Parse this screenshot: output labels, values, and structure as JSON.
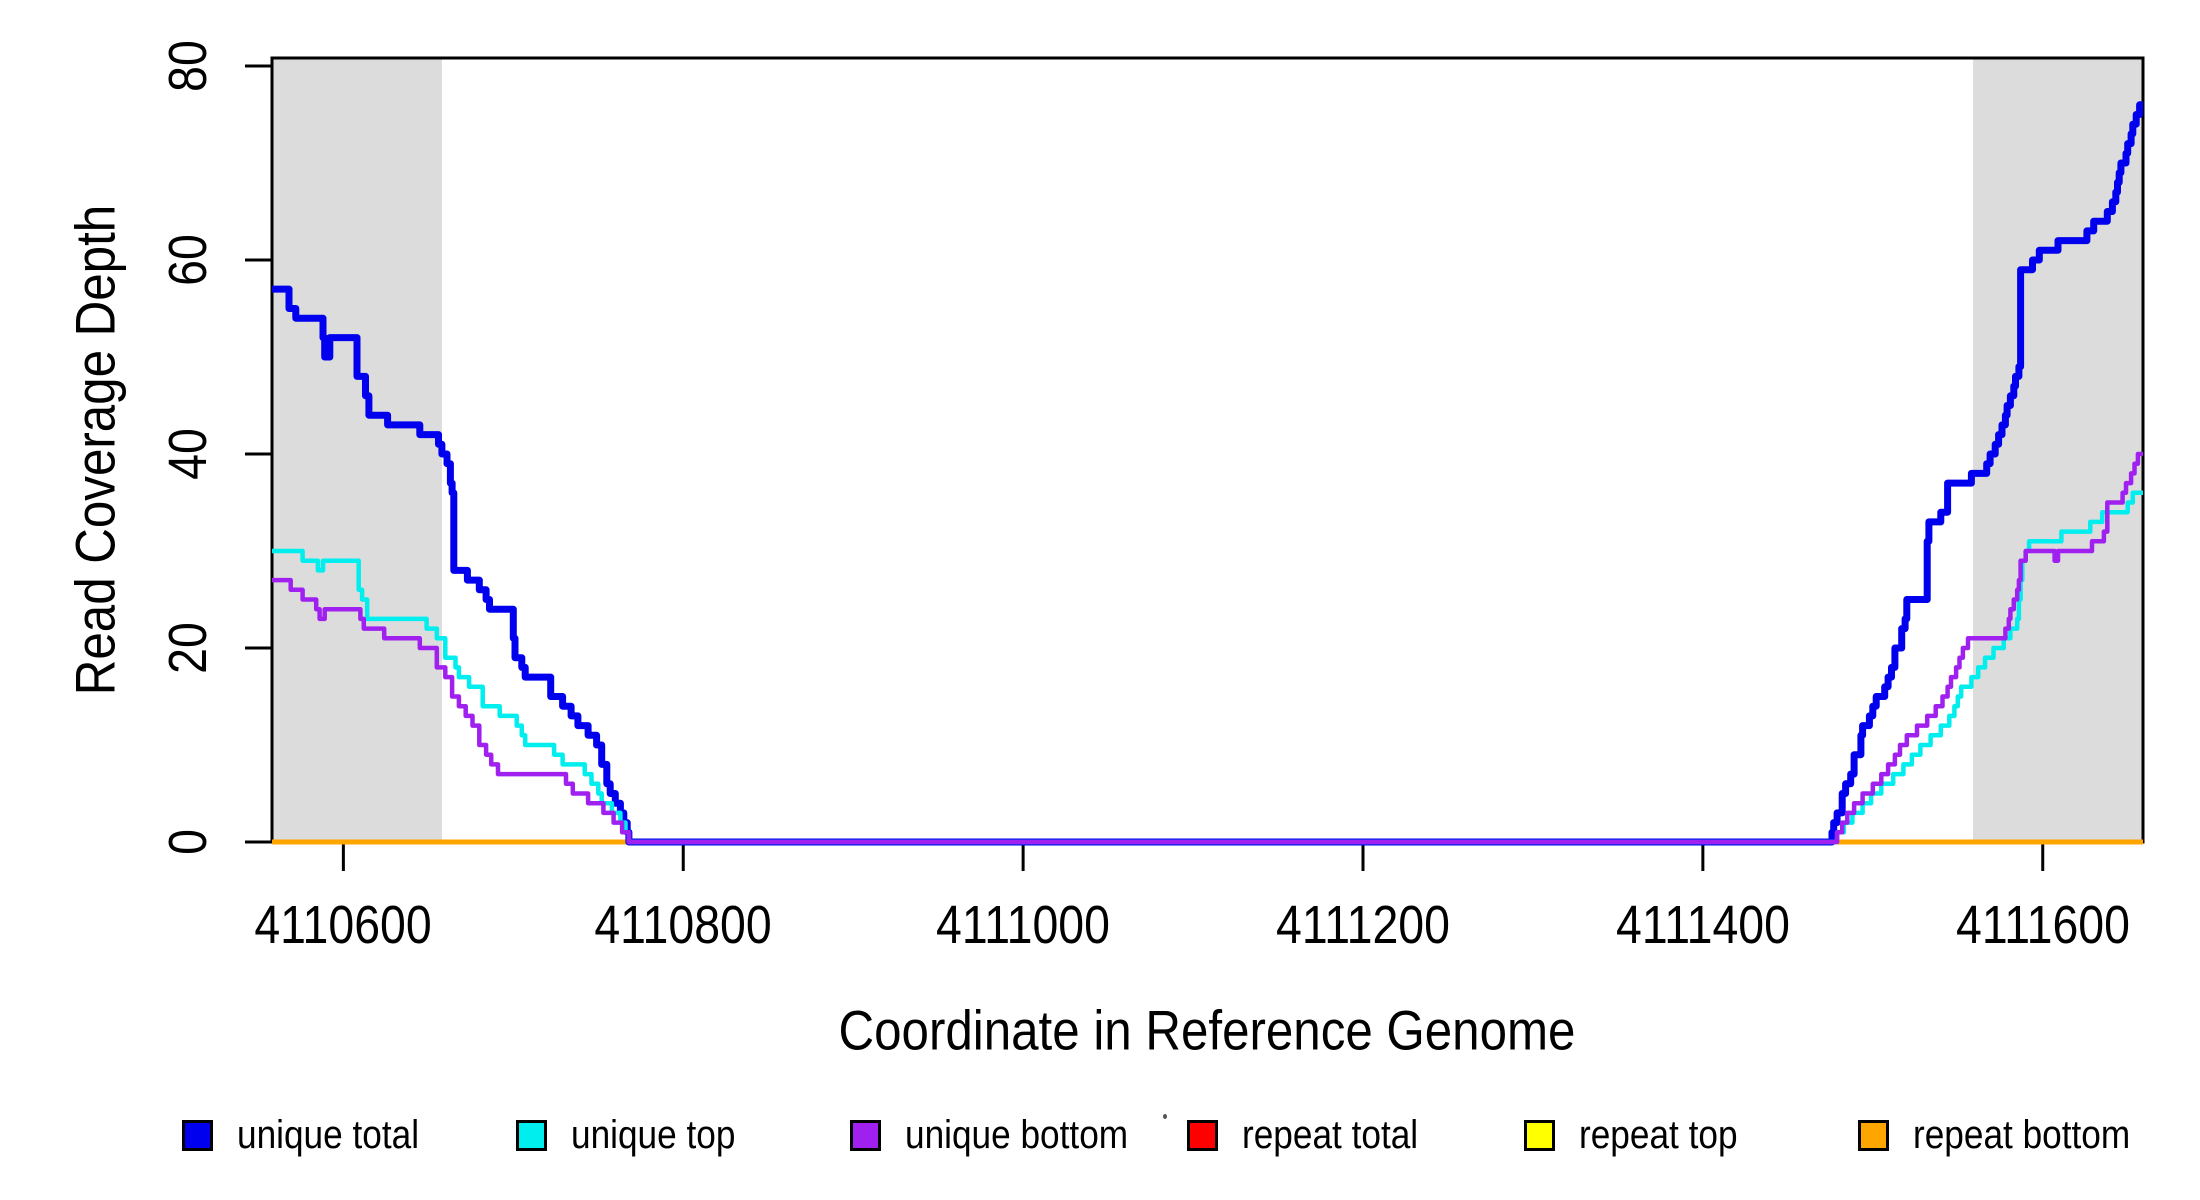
{
  "chart_data": {
    "type": "line",
    "step_style": "step-after",
    "title": "",
    "xlabel": "Coordinate in Reference Genome",
    "ylabel": "Read Coverage Depth",
    "xlim": [
      4110558,
      4111659
    ],
    "ylim": [
      0,
      80.8
    ],
    "x_ticks": [
      4110600,
      4110800,
      4111000,
      4111200,
      4111400,
      4111600
    ],
    "y_ticks": [
      0,
      20,
      40,
      60,
      80
    ],
    "grid": false,
    "background": "#ffffff",
    "box_color": "#000000",
    "shaded_regions": [
      {
        "x0": 4110558,
        "x1": 4110658,
        "color": "#dcdcdc"
      },
      {
        "x0": 4111559,
        "x1": 4111659,
        "color": "#dcdcdc"
      }
    ],
    "series": [
      {
        "name": "repeat total",
        "color": "#ff0000",
        "width": 4.5,
        "points": [
          [
            4110558,
            0
          ]
        ]
      },
      {
        "name": "repeat top",
        "color": "#ffff00",
        "width": 4.5,
        "points": [
          [
            4110558,
            0
          ]
        ]
      },
      {
        "name": "repeat bottom",
        "color": "#ffa500",
        "width": 5,
        "points": [
          [
            4110558,
            0
          ]
        ]
      },
      {
        "name": "unique total",
        "color": "#0000ee",
        "width": 7,
        "points": [
          [
            4110558,
            57
          ],
          [
            4110568,
            55
          ],
          [
            4110572,
            54
          ],
          [
            4110588,
            52
          ],
          [
            4110589,
            50
          ],
          [
            4110592,
            52
          ],
          [
            4110608,
            48
          ],
          [
            4110613,
            46
          ],
          [
            4110615,
            44
          ],
          [
            4110626,
            43
          ],
          [
            4110645,
            42
          ],
          [
            4110656,
            41
          ],
          [
            4110658,
            40
          ],
          [
            4110661,
            39
          ],
          [
            4110663,
            37
          ],
          [
            4110664,
            36
          ],
          [
            4110665,
            28
          ],
          [
            4110673,
            27
          ],
          [
            4110680,
            26
          ],
          [
            4110684,
            25
          ],
          [
            4110686,
            24
          ],
          [
            4110700,
            21
          ],
          [
            4110701,
            19
          ],
          [
            4110705,
            18
          ],
          [
            4110707,
            17
          ],
          [
            4110722,
            15
          ],
          [
            4110729,
            14
          ],
          [
            4110734,
            13
          ],
          [
            4110738,
            12
          ],
          [
            4110744,
            11
          ],
          [
            4110749,
            10
          ],
          [
            4110752,
            8
          ],
          [
            4110755,
            6
          ],
          [
            4110757,
            5
          ],
          [
            4110760,
            4
          ],
          [
            4110763,
            3
          ],
          [
            4110765,
            2
          ],
          [
            4110767,
            1
          ],
          [
            4110768,
            0
          ],
          [
            4111476,
            1
          ],
          [
            4111477,
            2
          ],
          [
            4111479,
            3
          ],
          [
            4111482,
            5
          ],
          [
            4111484,
            6
          ],
          [
            4111487,
            7
          ],
          [
            4111489,
            9
          ],
          [
            4111493,
            11
          ],
          [
            4111494,
            12
          ],
          [
            4111498,
            13
          ],
          [
            4111500,
            14
          ],
          [
            4111502,
            15
          ],
          [
            4111507,
            16
          ],
          [
            4111509,
            17
          ],
          [
            4111511,
            18
          ],
          [
            4111513,
            20
          ],
          [
            4111517,
            22
          ],
          [
            4111519,
            23
          ],
          [
            4111520,
            25
          ],
          [
            4111532,
            31
          ],
          [
            4111533,
            33
          ],
          [
            4111540,
            34
          ],
          [
            4111544,
            37
          ],
          [
            4111558,
            38
          ],
          [
            4111567,
            39
          ],
          [
            4111569,
            40
          ],
          [
            4111572,
            41
          ],
          [
            4111574,
            42
          ],
          [
            4111576,
            43
          ],
          [
            4111578,
            44
          ],
          [
            4111579,
            45
          ],
          [
            4111581,
            46
          ],
          [
            4111583,
            47
          ],
          [
            4111584,
            48
          ],
          [
            4111586,
            49
          ],
          [
            4111587,
            59
          ],
          [
            4111594,
            60
          ],
          [
            4111598,
            61
          ],
          [
            4111609,
            62
          ],
          [
            4111626,
            63
          ],
          [
            4111630,
            64
          ],
          [
            4111638,
            65
          ],
          [
            4111641,
            66
          ],
          [
            4111643,
            67
          ],
          [
            4111644,
            68
          ],
          [
            4111645,
            69
          ],
          [
            4111646,
            70
          ],
          [
            4111649,
            71
          ],
          [
            4111650,
            72
          ],
          [
            4111652,
            73
          ],
          [
            4111653,
            74
          ],
          [
            4111655,
            75
          ],
          [
            4111657,
            76
          ]
        ]
      },
      {
        "name": "unique top",
        "color": "#00eeee",
        "width": 4.5,
        "points": [
          [
            4110558,
            30
          ],
          [
            4110576,
            29
          ],
          [
            4110585,
            28
          ],
          [
            4110588,
            29
          ],
          [
            4110609,
            26
          ],
          [
            4110611,
            25
          ],
          [
            4110614,
            23
          ],
          [
            4110649,
            22
          ],
          [
            4110655,
            21
          ],
          [
            4110660,
            19
          ],
          [
            4110666,
            18
          ],
          [
            4110668,
            17
          ],
          [
            4110674,
            16
          ],
          [
            4110682,
            14
          ],
          [
            4110692,
            13
          ],
          [
            4110702,
            12
          ],
          [
            4110705,
            11
          ],
          [
            4110707,
            10
          ],
          [
            4110724,
            9
          ],
          [
            4110729,
            8
          ],
          [
            4110742,
            7
          ],
          [
            4110746,
            6
          ],
          [
            4110750,
            5
          ],
          [
            4110752,
            4
          ],
          [
            4110758,
            3
          ],
          [
            4110763,
            2
          ],
          [
            4110766,
            1
          ],
          [
            4110768,
            0
          ],
          [
            4111479,
            1
          ],
          [
            4111483,
            2
          ],
          [
            4111488,
            3
          ],
          [
            4111494,
            4
          ],
          [
            4111499,
            5
          ],
          [
            4111505,
            6
          ],
          [
            4111512,
            7
          ],
          [
            4111518,
            8
          ],
          [
            4111523,
            9
          ],
          [
            4111528,
            10
          ],
          [
            4111534,
            11
          ],
          [
            4111540,
            12
          ],
          [
            4111545,
            13
          ],
          [
            4111548,
            14
          ],
          [
            4111550,
            15
          ],
          [
            4111552,
            16
          ],
          [
            4111558,
            17
          ],
          [
            4111562,
            18
          ],
          [
            4111566,
            19
          ],
          [
            4111571,
            20
          ],
          [
            4111577,
            21
          ],
          [
            4111581,
            22
          ],
          [
            4111585,
            23
          ],
          [
            4111586,
            25
          ],
          [
            4111587,
            27
          ],
          [
            4111588,
            29
          ],
          [
            4111590,
            30
          ],
          [
            4111592,
            31
          ],
          [
            4111611,
            32
          ],
          [
            4111628,
            33
          ],
          [
            4111635,
            34
          ],
          [
            4111650,
            35
          ],
          [
            4111653,
            36
          ]
        ]
      },
      {
        "name": "unique bottom",
        "color": "#a020f0",
        "width": 4.5,
        "points": [
          [
            4110558,
            27
          ],
          [
            4110569,
            26
          ],
          [
            4110576,
            25
          ],
          [
            4110584,
            24
          ],
          [
            4110586,
            23
          ],
          [
            4110589,
            24
          ],
          [
            4110610,
            23
          ],
          [
            4110612,
            22
          ],
          [
            4110624,
            21
          ],
          [
            4110645,
            20
          ],
          [
            4110655,
            18
          ],
          [
            4110660,
            17
          ],
          [
            4110664,
            15
          ],
          [
            4110668,
            14
          ],
          [
            4110672,
            13
          ],
          [
            4110676,
            12
          ],
          [
            4110680,
            10
          ],
          [
            4110684,
            9
          ],
          [
            4110687,
            8
          ],
          [
            4110691,
            7
          ],
          [
            4110731,
            6
          ],
          [
            4110735,
            5
          ],
          [
            4110744,
            4
          ],
          [
            4110753,
            3
          ],
          [
            4110759,
            2
          ],
          [
            4110764,
            1
          ],
          [
            4110768,
            0
          ],
          [
            4111479,
            1
          ],
          [
            4111482,
            2
          ],
          [
            4111485,
            3
          ],
          [
            4111489,
            4
          ],
          [
            4111494,
            5
          ],
          [
            4111500,
            6
          ],
          [
            4111505,
            7
          ],
          [
            4111509,
            8
          ],
          [
            4111513,
            9
          ],
          [
            4111516,
            10
          ],
          [
            4111520,
            11
          ],
          [
            4111526,
            12
          ],
          [
            4111532,
            13
          ],
          [
            4111537,
            14
          ],
          [
            4111541,
            15
          ],
          [
            4111544,
            16
          ],
          [
            4111546,
            17
          ],
          [
            4111549,
            18
          ],
          [
            4111551,
            19
          ],
          [
            4111553,
            20
          ],
          [
            4111556,
            21
          ],
          [
            4111578,
            22
          ],
          [
            4111580,
            23
          ],
          [
            4111581,
            24
          ],
          [
            4111583,
            25
          ],
          [
            4111585,
            26
          ],
          [
            4111586,
            27
          ],
          [
            4111587,
            29
          ],
          [
            4111590,
            30
          ],
          [
            4111607,
            29
          ],
          [
            4111609,
            30
          ],
          [
            4111629,
            31
          ],
          [
            4111636,
            32
          ],
          [
            4111638,
            35
          ],
          [
            4111647,
            36
          ],
          [
            4111649,
            37
          ],
          [
            4111652,
            38
          ],
          [
            4111654,
            39
          ],
          [
            4111656,
            40
          ]
        ]
      }
    ],
    "legend": {
      "position": "bottom",
      "items": [
        {
          "label": "unique total",
          "color": "#0000ee"
        },
        {
          "label": "unique top",
          "color": "#00eeee"
        },
        {
          "label": "unique bottom",
          "color": "#a020f0"
        },
        {
          "label": "repeat total",
          "color": "#ff0000"
        },
        {
          "label": "repeat top",
          "color": "#ffff00"
        },
        {
          "label": "repeat bottom",
          "color": "#ffa500"
        }
      ],
      "stray_dot": "·"
    }
  }
}
